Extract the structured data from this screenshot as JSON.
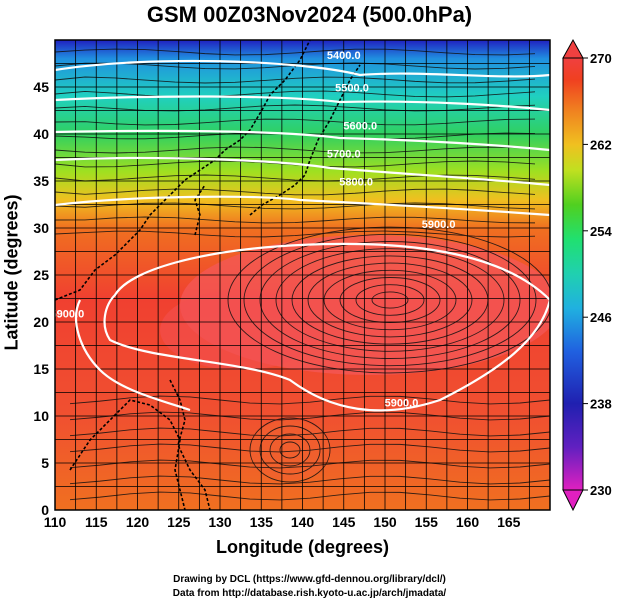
{
  "title": "GSM 00Z03Nov2024 (500.0hPa)",
  "xlabel": "Longitude (degrees)",
  "ylabel": "Latitude  (degrees)",
  "credits": {
    "line1": "Drawing by DCL (https://www.gfd-dennou.org/library/dcl/)",
    "line2": "Data from http://database.rish.kyoto-u.ac.jp/arch/jmadata/"
  },
  "chart_data": {
    "type": "heatmap",
    "xlim": [
      110,
      170
    ],
    "ylim": [
      0,
      50
    ],
    "x_ticks": [
      110,
      115,
      120,
      125,
      130,
      135,
      140,
      145,
      150,
      155,
      160,
      165
    ],
    "y_ticks": [
      0,
      5,
      10,
      15,
      20,
      25,
      30,
      35,
      40,
      45
    ],
    "grid": true,
    "colorbar": {
      "min": 230,
      "max": 270,
      "ticks": [
        230,
        238,
        246,
        254,
        262,
        270
      ],
      "colors": [
        "#e020c0",
        "#2020b0",
        "#2060e0",
        "#20c0e0",
        "#20e090",
        "#50d020",
        "#c0e020",
        "#f0c020",
        "#f08020",
        "#f04020",
        "#f04040"
      ]
    },
    "contour_labels": [
      {
        "text": "5400.0",
        "lon": 145,
        "lat": 48
      },
      {
        "text": "5500.0",
        "lon": 146,
        "lat": 44.5
      },
      {
        "text": "5600.0",
        "lon": 147,
        "lat": 40.5
      },
      {
        "text": "5700.0",
        "lon": 145,
        "lat": 37.5
      },
      {
        "text": "5800.0",
        "lon": 146.5,
        "lat": 34.5
      },
      {
        "text": "5900.0",
        "lon": 156.5,
        "lat": 30
      },
      {
        "text": "5900.0",
        "lon": 111.5,
        "lat": 20.5
      },
      {
        "text": "5900.0",
        "lon": 152,
        "lat": 11
      }
    ]
  }
}
